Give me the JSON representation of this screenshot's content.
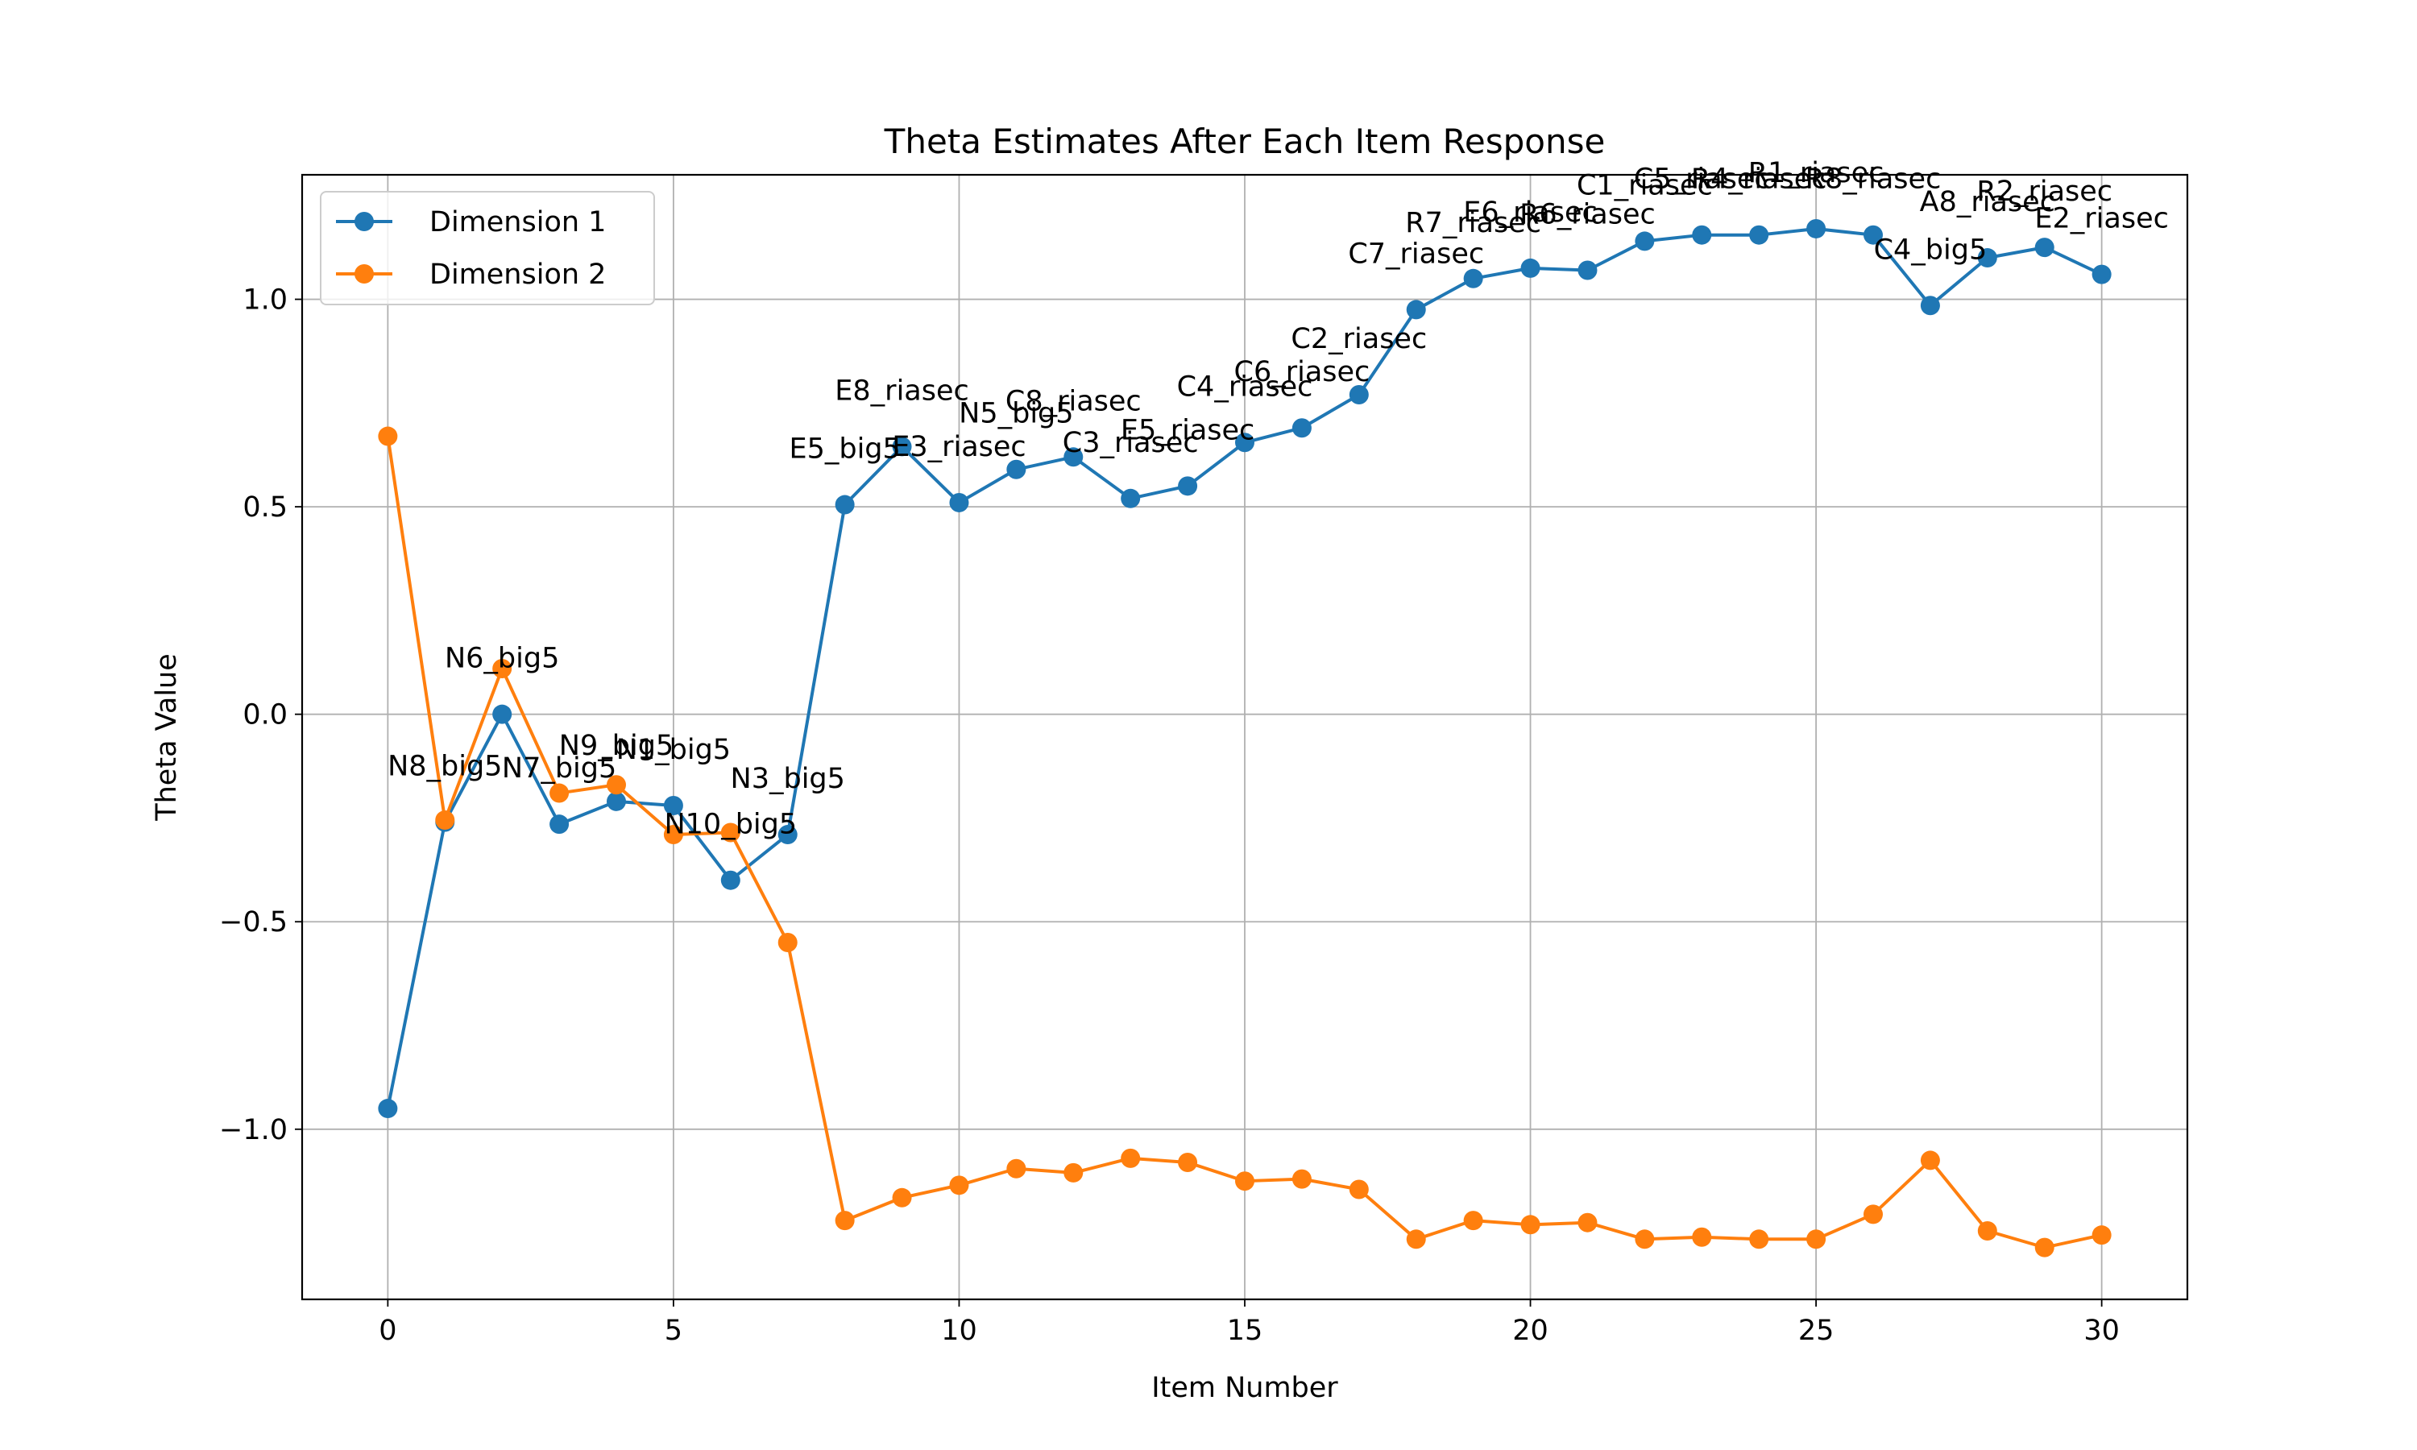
{
  "chart_data": {
    "type": "line",
    "title": "Theta Estimates After Each Item Response",
    "xlabel": "Item Number",
    "ylabel": "Theta Value",
    "xlim": [
      -1.5,
      31.5
    ],
    "ylim": [
      -1.41,
      1.3
    ],
    "xticks": [
      0,
      5,
      10,
      15,
      20,
      25,
      30
    ],
    "xtick_labels": [
      "0",
      "5",
      "10",
      "15",
      "20",
      "25",
      "30"
    ],
    "yticks": [
      -1.0,
      -0.5,
      0.0,
      0.5,
      1.0
    ],
    "ytick_labels": [
      "−1.0",
      "−0.5",
      "0.0",
      "0.5",
      "1.0"
    ],
    "grid": true,
    "legend_position": "top-left",
    "x": [
      0,
      1,
      2,
      3,
      4,
      5,
      6,
      7,
      8,
      9,
      10,
      11,
      12,
      13,
      14,
      15,
      16,
      17,
      18,
      19,
      20,
      21,
      22,
      23,
      24,
      25,
      26,
      27,
      28,
      29,
      30
    ],
    "series": [
      {
        "name": "Dimension 1",
        "color": "#1f77b4",
        "values": [
          -0.95,
          -0.26,
          0.0,
          -0.265,
          -0.21,
          -0.22,
          -0.4,
          -0.29,
          0.505,
          0.645,
          0.51,
          0.59,
          0.62,
          0.52,
          0.55,
          0.655,
          0.69,
          0.77,
          0.975,
          1.05,
          1.075,
          1.07,
          1.14,
          1.155,
          1.155,
          1.17,
          1.155,
          0.985,
          1.1,
          1.125,
          1.06
        ]
      },
      {
        "name": "Dimension 2",
        "color": "#ff7f0e",
        "values": [
          0.67,
          -0.255,
          0.11,
          -0.19,
          -0.17,
          -0.29,
          -0.285,
          -0.55,
          -1.22,
          -1.165,
          -1.135,
          -1.095,
          -1.105,
          -1.07,
          -1.08,
          -1.125,
          -1.12,
          -1.145,
          -1.265,
          -1.22,
          -1.23,
          -1.225,
          -1.265,
          -1.26,
          -1.265,
          -1.265,
          -1.205,
          -1.075,
          -1.245,
          -1.285,
          -1.255
        ]
      }
    ],
    "annotations": [
      {
        "x": 1,
        "y": -0.26,
        "text": "N8_big5"
      },
      {
        "x": 2,
        "y": 0.0,
        "text": "N6_big5"
      },
      {
        "x": 3,
        "y": -0.265,
        "text": "N7_big5"
      },
      {
        "x": 4,
        "y": -0.21,
        "text": "N9_big5"
      },
      {
        "x": 5,
        "y": -0.22,
        "text": "N1_big5"
      },
      {
        "x": 6,
        "y": -0.4,
        "text": "N10_big5"
      },
      {
        "x": 7,
        "y": -0.29,
        "text": "N3_big5"
      },
      {
        "x": 8,
        "y": 0.505,
        "text": "E5_big5"
      },
      {
        "x": 9,
        "y": 0.645,
        "text": "E8_riasec"
      },
      {
        "x": 10,
        "y": 0.51,
        "text": "E3_riasec"
      },
      {
        "x": 11,
        "y": 0.59,
        "text": "N5_big5"
      },
      {
        "x": 12,
        "y": 0.62,
        "text": "C8_riasec"
      },
      {
        "x": 13,
        "y": 0.52,
        "text": "C3_riasec"
      },
      {
        "x": 14,
        "y": 0.55,
        "text": "E5_riasec"
      },
      {
        "x": 15,
        "y": 0.655,
        "text": "C4_riasec"
      },
      {
        "x": 16,
        "y": 0.69,
        "text": "C6_riasec"
      },
      {
        "x": 17,
        "y": 0.77,
        "text": "C2_riasec"
      },
      {
        "x": 18,
        "y": 0.975,
        "text": "C7_riasec"
      },
      {
        "x": 19,
        "y": 1.05,
        "text": "R7_riasec"
      },
      {
        "x": 20,
        "y": 1.075,
        "text": "E6_riasec"
      },
      {
        "x": 21,
        "y": 1.07,
        "text": "R6_riasec"
      },
      {
        "x": 22,
        "y": 1.14,
        "text": "C1_riasec"
      },
      {
        "x": 23,
        "y": 1.155,
        "text": "C5_riasec"
      },
      {
        "x": 24,
        "y": 1.155,
        "text": "R4_riasec"
      },
      {
        "x": 25,
        "y": 1.17,
        "text": "R1_riasec"
      },
      {
        "x": 26,
        "y": 1.155,
        "text": "R8_riasec"
      },
      {
        "x": 27,
        "y": 0.985,
        "text": "C4_big5"
      },
      {
        "x": 28,
        "y": 1.1,
        "text": "A8_riasec"
      },
      {
        "x": 29,
        "y": 1.125,
        "text": "R2_riasec"
      },
      {
        "x": 30,
        "y": 1.06,
        "text": "E2_riasec"
      }
    ]
  }
}
